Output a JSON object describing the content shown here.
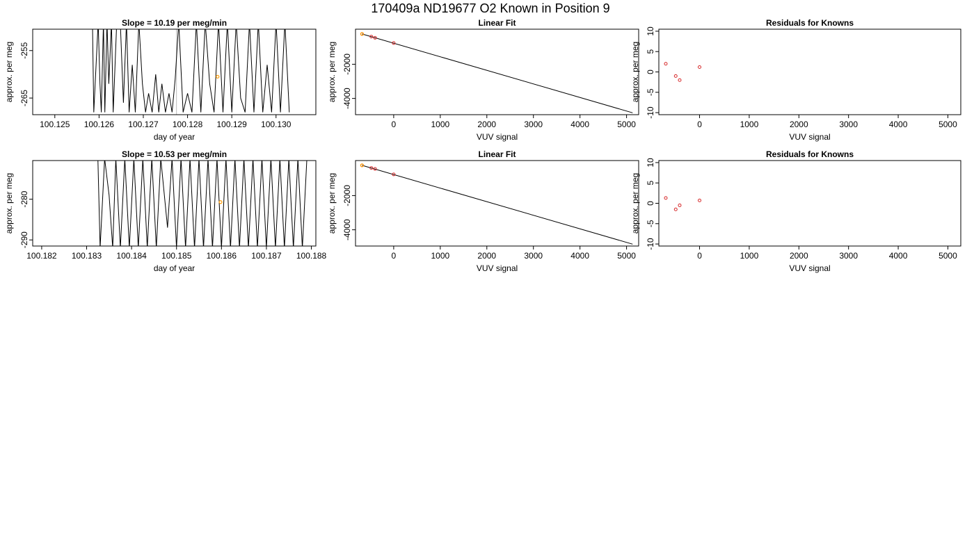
{
  "suptitle": "170409a     ND19677   O2 Known in Position  9",
  "colors": {
    "trace": "#000000",
    "known_point": "#d62728",
    "highlight_point": "#ff9900",
    "marker_line": "#bbbbbb",
    "frame": "#000000"
  },
  "chart_data": [
    {
      "type": "line",
      "title": "Slope =  10.19  per meg/min",
      "xlabel": "day of year",
      "ylabel": "approx. per meg",
      "xlim": [
        100.1245,
        100.1309
      ],
      "ylim": [
        -268.5,
        -250.5
      ],
      "xticks": [
        100.125,
        100.126,
        100.127,
        100.128,
        100.129,
        100.13
      ],
      "xtick_labels": [
        "100.125",
        "100.126",
        "100.127",
        "100.128",
        "100.129",
        "100.130"
      ],
      "yticks": [
        -255,
        -265
      ],
      "ytick_labels": [
        "-255",
        "-265"
      ],
      "series": [
        {
          "x": [
            100.12585,
            100.12588,
            100.12598,
            100.12602,
            100.12605,
            100.1261,
            100.12613,
            100.12618,
            100.12622,
            100.12628,
            100.12632,
            100.1264,
            100.12648,
            100.12655,
            100.12662,
            100.12668,
            100.12675,
            100.12682,
            100.1269,
            100.12698,
            100.12705,
            100.12712,
            100.1272,
            100.12728,
            100.12735,
            100.12742,
            100.1275,
            100.12758,
            100.12765,
            100.12772,
            100.1278,
            100.1279,
            100.128,
            100.1281,
            100.1282,
            100.1283,
            100.1284,
            100.1285,
            100.1286,
            100.1287,
            100.1288,
            100.1289,
            100.129,
            100.1291,
            100.1292,
            100.1293,
            100.1294,
            100.1295,
            100.1296,
            100.1297,
            100.1298,
            100.1299,
            100.13,
            100.1301,
            100.1302,
            100.1303
          ],
          "y": [
            -249,
            -268,
            -249,
            -262,
            -268,
            -249,
            -268,
            -249,
            -262,
            -249,
            -268,
            -249,
            -249,
            -266,
            -249,
            -268,
            -258,
            -268,
            -249,
            -262,
            -268,
            -264,
            -268,
            -260,
            -268,
            -262,
            -268,
            -264,
            -268,
            -261,
            -249,
            -268,
            -264,
            -268,
            -249,
            -268,
            -249,
            -262,
            -268,
            -249,
            -268,
            -249,
            -268,
            -249,
            -265,
            -268,
            -249,
            -268,
            -249,
            -268,
            -258,
            -268,
            -249,
            -268,
            -249,
            -268
          ]
        }
      ],
      "markers": [
        100.12775
      ],
      "highlight": [
        {
          "x": 100.12868,
          "y": -260.5
        }
      ]
    },
    {
      "type": "line",
      "title": "Linear Fit",
      "xlabel": "VUV signal",
      "ylabel": "approx. per meg",
      "xlim": [
        -820,
        5260
      ],
      "ylim": [
        -4950,
        50
      ],
      "xticks": [
        0,
        1000,
        2000,
        3000,
        4000,
        5000
      ],
      "xtick_labels": [
        "0",
        "1000",
        "2000",
        "3000",
        "4000",
        "5000"
      ],
      "yticks": [
        -2000,
        -4000
      ],
      "ytick_labels": [
        "-2000",
        "-4000"
      ],
      "fit_line": {
        "x": [
          -680,
          5130
        ],
        "y": [
          -230,
          -4840
        ]
      },
      "points": [
        {
          "x": -680,
          "y": -230
        },
        {
          "x": -480,
          "y": -385
        },
        {
          "x": -400,
          "y": -455
        },
        {
          "x": 0,
          "y": -760
        }
      ],
      "highlight": [
        {
          "x": -680,
          "y": -230
        }
      ]
    },
    {
      "type": "scatter",
      "title": "Residuals for Knowns",
      "xlabel": "VUV signal",
      "ylabel": "approx. per meg",
      "xlim": [
        -820,
        5260
      ],
      "ylim": [
        -10.5,
        10.5
      ],
      "xticks": [
        0,
        1000,
        2000,
        3000,
        4000,
        5000
      ],
      "xtick_labels": [
        "0",
        "1000",
        "2000",
        "3000",
        "4000",
        "5000"
      ],
      "yticks": [
        10,
        5,
        0,
        -5,
        -10
      ],
      "ytick_labels": [
        "10",
        "5",
        "0",
        "-5",
        "-10"
      ],
      "points": [
        {
          "x": -680,
          "y": 2.0
        },
        {
          "x": -480,
          "y": -1.0
        },
        {
          "x": -400,
          "y": -2.0
        },
        {
          "x": 0,
          "y": 1.2
        }
      ]
    },
    {
      "type": "line",
      "title": "Slope =  10.53  per meg/min",
      "xlabel": "day of year",
      "ylabel": "approx. per meg",
      "xlim": [
        100.1818,
        100.1881
      ],
      "ylim": [
        -291.5,
        -270.5
      ],
      "xticks": [
        100.182,
        100.183,
        100.184,
        100.185,
        100.186,
        100.187,
        100.188
      ],
      "xtick_labels": [
        "100.182",
        "100.183",
        "100.184",
        "100.185",
        "100.186",
        "100.187",
        "100.188"
      ],
      "yticks": [
        -280,
        -290
      ],
      "ytick_labels": [
        "-280",
        "-290"
      ],
      "series": [
        {
          "x": [
            100.18325,
            100.1833,
            100.1834,
            100.1835,
            100.18358,
            100.18365,
            100.18375,
            100.18385,
            100.18395,
            100.18405,
            100.18415,
            100.18425,
            100.18435,
            100.18445,
            100.18455,
            100.18465,
            100.1848,
            100.1849,
            100.185,
            100.1851,
            100.1852,
            100.1853,
            100.1854,
            100.1855,
            100.1856,
            100.1857,
            100.1858,
            100.1859,
            100.186,
            100.1861,
            100.1862,
            100.1863,
            100.1864,
            100.1865,
            100.1866,
            100.1867,
            100.1868,
            100.1869,
            100.187,
            100.1871,
            100.1872,
            100.1873,
            100.1874,
            100.1875,
            100.1876,
            100.1877,
            100.1878,
            100.1879
          ],
          "y": [
            -270,
            -292,
            -270,
            -279,
            -292,
            -270,
            -292,
            -270,
            -292,
            -270,
            -292,
            -270,
            -292,
            -270,
            -292,
            -270,
            -287,
            -270,
            -292,
            -270,
            -292,
            -270,
            -292,
            -270,
            -292,
            -270,
            -292,
            -270,
            -292,
            -270,
            -292,
            -270,
            -292,
            -270,
            -292,
            -270,
            -292,
            -270,
            -292,
            -270,
            -292,
            -270,
            -292,
            -270,
            -292,
            -270,
            -292,
            -270
          ]
        }
      ],
      "highlight": [
        {
          "x": 100.18598,
          "y": -280.7
        }
      ]
    },
    {
      "type": "line",
      "title": "Linear Fit",
      "xlabel": "VUV signal",
      "ylabel": "approx. per meg",
      "xlim": [
        -820,
        5260
      ],
      "ylim": [
        -4950,
        50
      ],
      "xticks": [
        0,
        1000,
        2000,
        3000,
        4000,
        5000
      ],
      "xtick_labels": [
        "0",
        "1000",
        "2000",
        "3000",
        "4000",
        "5000"
      ],
      "yticks": [
        -2000,
        -4000
      ],
      "ytick_labels": [
        "-2000",
        "-4000"
      ],
      "fit_line": {
        "x": [
          -680,
          5130
        ],
        "y": [
          -230,
          -4840
        ]
      },
      "points": [
        {
          "x": -680,
          "y": -230
        },
        {
          "x": -480,
          "y": -385
        },
        {
          "x": -400,
          "y": -440
        },
        {
          "x": 0,
          "y": -760
        }
      ],
      "highlight": [
        {
          "x": -680,
          "y": -230
        }
      ]
    },
    {
      "type": "scatter",
      "title": "Residuals for Knowns",
      "xlabel": "VUV signal",
      "ylabel": "approx. per meg",
      "xlim": [
        -820,
        5260
      ],
      "ylim": [
        -10.5,
        10.5
      ],
      "xticks": [
        0,
        1000,
        2000,
        3000,
        4000,
        5000
      ],
      "xtick_labels": [
        "0",
        "1000",
        "2000",
        "3000",
        "4000",
        "5000"
      ],
      "yticks": [
        10,
        5,
        0,
        -5,
        -10
      ],
      "ytick_labels": [
        "10",
        "5",
        "0",
        "-5",
        "-10"
      ],
      "points": [
        {
          "x": -680,
          "y": 1.3
        },
        {
          "x": -480,
          "y": -1.5
        },
        {
          "x": -400,
          "y": -0.5
        },
        {
          "x": 0,
          "y": 0.7
        }
      ]
    }
  ]
}
